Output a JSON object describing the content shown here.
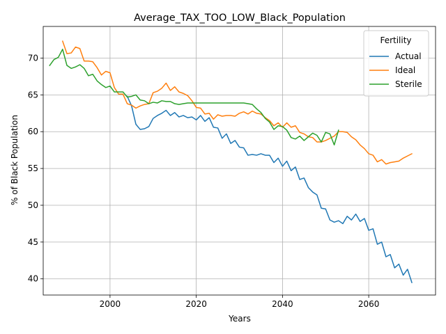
{
  "chart_data": {
    "type": "line",
    "title": "Average_TAX_TOO_LOW_Black_Population",
    "xlabel": "Years",
    "ylabel": "% of Black Population",
    "xlim": [
      1984.5,
      2075.5
    ],
    "ylim": [
      37.8,
      74.3
    ],
    "xticks": [
      2000,
      2020,
      2040,
      2060
    ],
    "yticks": [
      40,
      45,
      50,
      55,
      60,
      65,
      70
    ],
    "grid": true,
    "legend": {
      "title": "Fertility",
      "placement": "top-right"
    },
    "series": [
      {
        "name": "Actual",
        "color": "#1f77b4",
        "x": [
          2004,
          2005,
          2006,
          2007,
          2008,
          2009,
          2010,
          2011,
          2012,
          2013,
          2014,
          2015,
          2016,
          2017,
          2018,
          2019,
          2020,
          2021,
          2022,
          2023,
          2024,
          2025,
          2026,
          2027,
          2028,
          2029,
          2030,
          2031,
          2032,
          2033,
          2034,
          2035,
          2036,
          2037,
          2038,
          2039,
          2040,
          2041,
          2042,
          2043,
          2044,
          2045,
          2046,
          2047,
          2048,
          2049,
          2050,
          2051,
          2052,
          2053,
          2054,
          2055,
          2056,
          2057,
          2058,
          2059,
          2060,
          2061,
          2062,
          2063,
          2064,
          2065,
          2066,
          2067,
          2068,
          2069,
          2070
        ],
        "y": [
          64.8,
          63.5,
          61.0,
          60.3,
          60.4,
          60.7,
          61.8,
          62.2,
          62.5,
          62.9,
          62.2,
          62.6,
          62.0,
          62.2,
          61.9,
          62.0,
          61.6,
          62.2,
          61.4,
          61.9,
          60.6,
          60.5,
          59.1,
          59.7,
          58.4,
          58.8,
          57.9,
          57.8,
          56.8,
          56.9,
          56.8,
          57.0,
          56.8,
          56.8,
          55.8,
          56.4,
          55.3,
          56.0,
          54.7,
          55.2,
          53.5,
          53.7,
          52.4,
          51.8,
          51.4,
          49.6,
          49.5,
          48.0,
          47.7,
          47.9,
          47.5,
          48.5,
          48.0,
          48.8,
          47.8,
          48.2,
          46.6,
          46.8,
          44.7,
          45.0,
          43.0,
          43.3,
          41.5,
          42.0,
          40.5,
          41.3,
          39.5
        ]
      },
      {
        "name": "Ideal",
        "color": "#ff7f0e",
        "x": [
          1989,
          1990,
          1991,
          1992,
          1993,
          1994,
          1995,
          1996,
          1997,
          1998,
          1999,
          2000,
          2001,
          2002,
          2003,
          2004,
          2005,
          2006,
          2007,
          2008,
          2009,
          2010,
          2011,
          2012,
          2013,
          2014,
          2015,
          2016,
          2017,
          2018,
          2019,
          2020,
          2021,
          2022,
          2023,
          2024,
          2025,
          2026,
          2027,
          2028,
          2029,
          2030,
          2031,
          2032,
          2033,
          2034,
          2035,
          2036,
          2037,
          2038,
          2039,
          2040,
          2041,
          2042,
          2043,
          2044,
          2045,
          2046,
          2047,
          2048,
          2049,
          2050,
          2051,
          2052,
          2053,
          2054,
          2055,
          2056,
          2057,
          2058,
          2059,
          2060,
          2061,
          2062,
          2063,
          2064,
          2065,
          2066,
          2067,
          2068,
          2069,
          2070
        ],
        "y": [
          72.3,
          70.6,
          70.7,
          71.5,
          71.3,
          69.6,
          69.6,
          69.5,
          68.7,
          67.7,
          68.2,
          68.0,
          66.0,
          65.1,
          65.1,
          63.8,
          63.6,
          63.2,
          63.5,
          63.7,
          63.8,
          65.3,
          65.5,
          65.9,
          66.6,
          65.6,
          66.1,
          65.4,
          65.2,
          64.9,
          64.2,
          63.3,
          63.2,
          62.4,
          62.5,
          61.7,
          62.3,
          62.1,
          62.2,
          62.2,
          62.1,
          62.5,
          62.7,
          62.4,
          62.8,
          62.5,
          62.4,
          61.9,
          61.5,
          60.8,
          61.2,
          60.6,
          61.2,
          60.6,
          60.8,
          59.9,
          59.7,
          59.3,
          59.2,
          58.6,
          58.6,
          58.8,
          59.1,
          59.4,
          60.0,
          60.0,
          59.9,
          59.3,
          58.9,
          58.2,
          57.7,
          57.0,
          56.8,
          55.9,
          56.2,
          55.6,
          55.8,
          55.9,
          56.0,
          56.4,
          56.7,
          57.0
        ]
      },
      {
        "name": "Sterile",
        "color": "#2ca02c",
        "x": [
          1986,
          1987,
          1988,
          1989,
          1990,
          1991,
          1992,
          1993,
          1994,
          1995,
          1996,
          1997,
          1998,
          1999,
          2000,
          2001,
          2002,
          2003,
          2004,
          2005,
          2006,
          2007,
          2008,
          2009,
          2010,
          2011,
          2012,
          2013,
          2014,
          2015,
          2016,
          2017,
          2018,
          2019,
          2020,
          2021,
          2022,
          2023,
          2024,
          2025,
          2026,
          2027,
          2028,
          2029,
          2030,
          2031,
          2032,
          2033,
          2034,
          2035,
          2036,
          2037,
          2038,
          2039,
          2040,
          2041,
          2042,
          2043,
          2044,
          2045,
          2046,
          2047,
          2048,
          2049,
          2050,
          2051,
          2052,
          2053
        ],
        "y": [
          69.0,
          69.8,
          70.1,
          71.2,
          69.0,
          68.6,
          68.8,
          69.1,
          68.6,
          67.6,
          67.8,
          66.9,
          66.4,
          66.0,
          66.2,
          65.4,
          65.4,
          65.4,
          64.7,
          64.8,
          65.0,
          64.3,
          64.2,
          63.8,
          64.0,
          63.9,
          64.2,
          64.1,
          64.1,
          63.8,
          63.7,
          63.8,
          63.9,
          63.9,
          63.9,
          63.9,
          63.9,
          63.9,
          63.9,
          63.9,
          63.9,
          63.9,
          63.9,
          63.9,
          63.9,
          63.9,
          63.8,
          63.7,
          63.1,
          62.6,
          61.8,
          61.3,
          60.3,
          60.8,
          60.7,
          60.2,
          59.2,
          59.0,
          59.4,
          58.8,
          59.3,
          59.8,
          59.5,
          58.6,
          59.9,
          59.7,
          58.2,
          60.2
        ]
      }
    ]
  }
}
